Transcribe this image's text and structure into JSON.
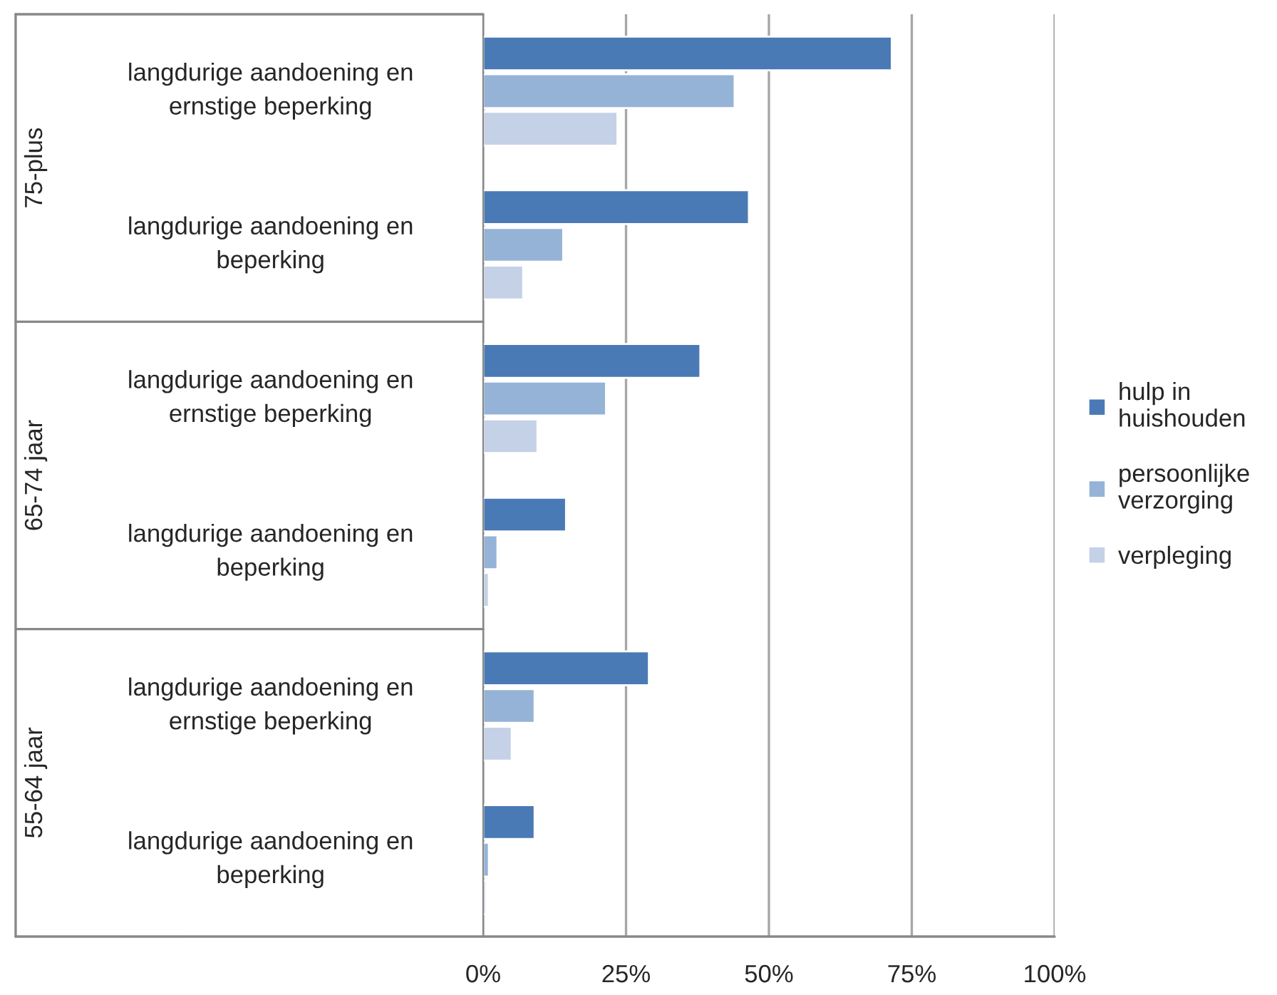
{
  "chart_data": {
    "type": "bar",
    "orientation": "horizontal",
    "categories": [
      "langdurige aandoening en\nernstige beperking",
      "langdurige aandoening en\nbeperking",
      "langdurige aandoening en\nernstige beperking",
      "langdurige aandoening en\nbeperking",
      "langdurige aandoening en\nernstige beperking",
      "langdurige aandoening en\nbeperking"
    ],
    "annotations": [
      "75-plus",
      "65-74 jaar",
      "55-64 jaar"
    ],
    "series": [
      {
        "name": "hulp in\nhuishouden",
        "color": "#4a7ab5",
        "values": [
          71.5,
          46.5,
          38,
          14.5,
          29,
          9
        ]
      },
      {
        "name": "persoonlijke\nverzorging",
        "color": "#95b3d7",
        "values": [
          44,
          14,
          21.5,
          2.5,
          9,
          1
        ]
      },
      {
        "name": "verpleging",
        "color": "#c5d1e6",
        "values": [
          23.5,
          7,
          9.5,
          1,
          5,
          0.5
        ]
      }
    ],
    "xlim": [
      0,
      100
    ],
    "xticks": [
      {
        "value": 0,
        "label": "0%"
      },
      {
        "value": 25,
        "label": "25%"
      },
      {
        "value": 50,
        "label": "50%"
      },
      {
        "value": 75,
        "label": "75%"
      },
      {
        "value": 100,
        "label": "100%"
      }
    ],
    "grid": "x",
    "legend": "right"
  }
}
